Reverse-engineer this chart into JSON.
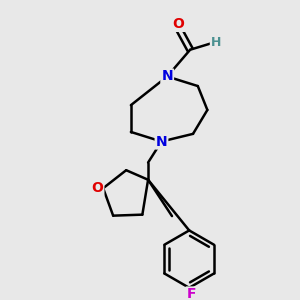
{
  "background_color": "#e8e8e8",
  "atom_colors": {
    "O": "#e00000",
    "N": "#0000e0",
    "F": "#cc00cc",
    "H": "#4a9090",
    "C": "#000000"
  },
  "bond_lw": 1.8,
  "font_size": 10
}
